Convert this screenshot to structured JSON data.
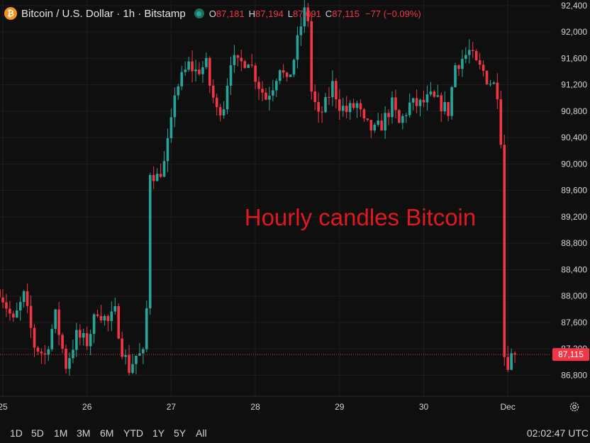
{
  "legend": {
    "icon_glyph": "₿",
    "title": "Bitcoin / U.S. Dollar · 1h · Bitstamp",
    "open_key": "O",
    "open": "87,181",
    "high_key": "H",
    "high": "87,194",
    "low_key": "L",
    "low": "87,091",
    "close_key": "C",
    "close": "87,115",
    "change": "−77 (−0.09%)"
  },
  "colors": {
    "background": "#0f0f0f",
    "up": "#26a69a",
    "down": "#f23645",
    "grid": "#1e1e1e",
    "axis_text": "#d1d4dc",
    "annotation": "#e0191e"
  },
  "toolbar": {
    "ranges": [
      "1D",
      "5D",
      "1M",
      "3M",
      "6M",
      "YTD",
      "1Y",
      "5Y",
      "All"
    ],
    "clock": "02:02:47 UTC"
  },
  "icons": {
    "settings": "gear-icon",
    "symbol": "bitcoin-icon",
    "status": "market-status-dot-icon"
  },
  "chart_data": {
    "type": "candlestick",
    "symbol": "Bitcoin / U.S. Dollar",
    "interval": "1h",
    "exchange": "Bitstamp",
    "annotation": "Hourly candles Bitcoin",
    "last_price": "87,115",
    "y_range": [
      86580,
      92420
    ],
    "y_ticks": [
      86800,
      87200,
      87600,
      88000,
      88400,
      88800,
      89200,
      89600,
      90000,
      90400,
      90800,
      91200,
      91600,
      92000,
      92400
    ],
    "y_tick_labels": [
      "86,800",
      "87,200",
      "87,600",
      "88,000",
      "88,400",
      "88,800",
      "89,200",
      "89,600",
      "90,000",
      "90,400",
      "90,800",
      "91,200",
      "91,600",
      "92,000",
      "92,400"
    ],
    "x_range_hours": [
      0,
      149
    ],
    "x_ticks": [
      {
        "label": "25",
        "hour": 0
      },
      {
        "label": "26",
        "hour": 24
      },
      {
        "label": "27",
        "hour": 48
      },
      {
        "label": "28",
        "hour": 72
      },
      {
        "label": "29",
        "hour": 96
      },
      {
        "label": "30",
        "hour": 120
      },
      {
        "label": "Dec",
        "hour": 144
      }
    ],
    "waypoints": [
      [
        -1,
        88100
      ],
      [
        3,
        87600
      ],
      [
        6,
        88000
      ],
      [
        9,
        87250
      ],
      [
        12,
        87100
      ],
      [
        15,
        87700
      ],
      [
        18,
        86950
      ],
      [
        21,
        87400
      ],
      [
        24,
        87300
      ],
      [
        27,
        87800
      ],
      [
        30,
        87600
      ],
      [
        32,
        87750
      ],
      [
        34,
        87200
      ],
      [
        36,
        86900
      ],
      [
        38,
        87100
      ],
      [
        40,
        87100
      ],
      [
        41,
        87800
      ],
      [
        42,
        89900
      ],
      [
        44,
        89800
      ],
      [
        46,
        90000
      ],
      [
        48,
        90600
      ],
      [
        49,
        91100
      ],
      [
        51,
        91300
      ],
      [
        53,
        91500
      ],
      [
        55,
        91400
      ],
      [
        58,
        91500
      ],
      [
        59,
        91200
      ],
      [
        61,
        90800
      ],
      [
        63,
        90900
      ],
      [
        65,
        91600
      ],
      [
        67,
        91500
      ],
      [
        70,
        91600
      ],
      [
        73,
        91200
      ],
      [
        75,
        91000
      ],
      [
        77,
        91200
      ],
      [
        79,
        91500
      ],
      [
        81,
        91200
      ],
      [
        83,
        91600
      ],
      [
        85,
        92100
      ],
      [
        86,
        92300
      ],
      [
        87,
        92200
      ],
      [
        88,
        91100
      ],
      [
        90,
        90700
      ],
      [
        92,
        90900
      ],
      [
        94,
        91200
      ],
      [
        96,
        90900
      ],
      [
        98,
        90800
      ],
      [
        101,
        90900
      ],
      [
        103,
        90600
      ],
      [
        106,
        90500
      ],
      [
        108,
        90600
      ],
      [
        111,
        90900
      ],
      [
        113,
        90600
      ],
      [
        116,
        90900
      ],
      [
        119,
        90900
      ],
      [
        122,
        91000
      ],
      [
        125,
        90900
      ],
      [
        127,
        90800
      ],
      [
        129,
        91500
      ],
      [
        131,
        91600
      ],
      [
        133,
        91700
      ],
      [
        135,
        91500
      ],
      [
        137,
        91400
      ],
      [
        138,
        91300
      ],
      [
        140,
        91200
      ],
      [
        141,
        91100
      ],
      [
        142,
        90400
      ],
      [
        143,
        87100
      ],
      [
        144,
        87000
      ],
      [
        145,
        87100
      ],
      [
        146,
        87115
      ]
    ]
  }
}
